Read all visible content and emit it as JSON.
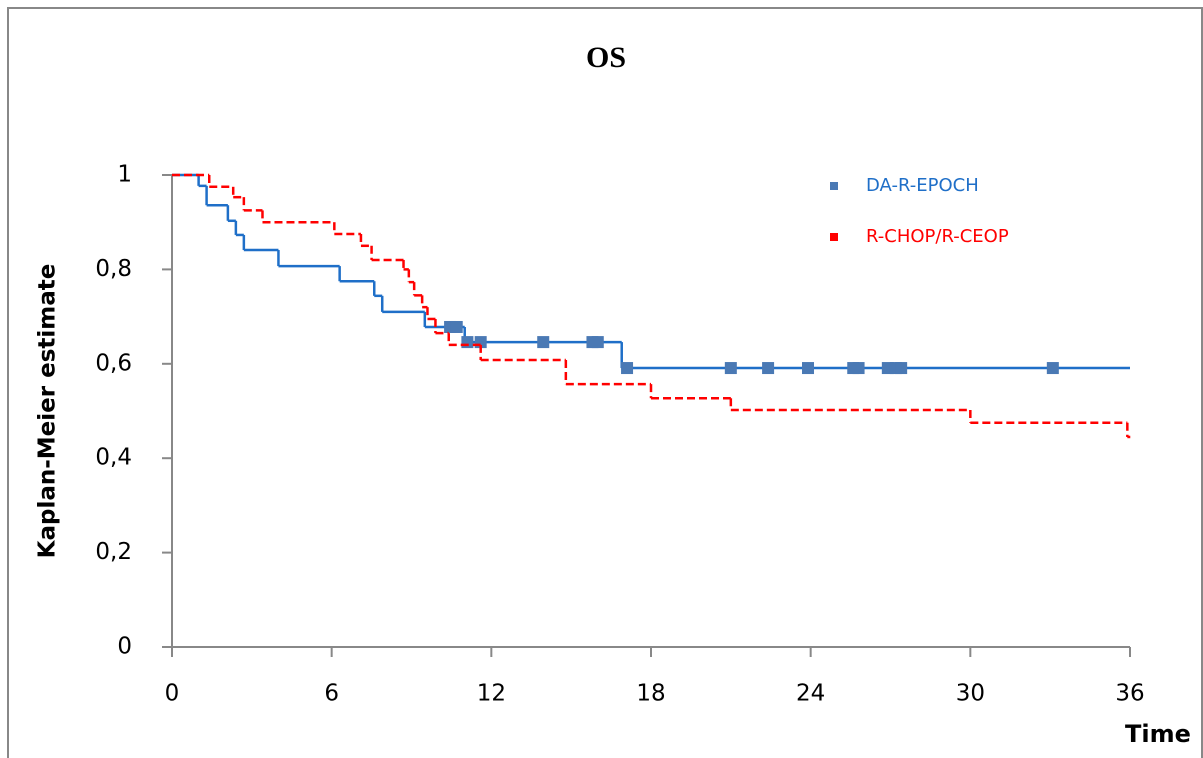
{
  "chart_data": {
    "type": "km-step",
    "title": "OS",
    "ylabel": "Kaplan-Meier estimate",
    "xlabel": "Time",
    "xlim": [
      0,
      36
    ],
    "xticks": [
      0,
      6,
      12,
      18,
      24,
      30,
      36
    ],
    "ylim": [
      0,
      1
    ],
    "yticks": [
      0,
      {
        "value": 0.2,
        "label": "0,2"
      },
      {
        "value": 0.4,
        "label": "0,4"
      },
      {
        "value": 0.6,
        "label": "0,6"
      },
      {
        "value": 0.8,
        "label": "0,8"
      },
      1
    ],
    "legend": "upper-right",
    "series": [
      {
        "name": "DA-R-EPOCH",
        "color": "#1f6fc8",
        "marker_color": "#4a79b4",
        "dashed": false,
        "x": [
          0,
          1.0,
          1.3,
          2.1,
          2.4,
          2.7,
          4.0,
          6.3,
          7.6,
          7.9,
          9.5,
          11.0,
          16.9,
          36
        ],
        "values": [
          1,
          0.977,
          0.936,
          0.903,
          0.873,
          0.841,
          0.807,
          0.775,
          0.744,
          0.71,
          0.678,
          0.646,
          0.591,
          0.591
        ],
        "censored": {
          "x": [
            10.45,
            10.7,
            11.1,
            11.6,
            13.95,
            15.8,
            16.0,
            17.1,
            21.0,
            22.4,
            23.9,
            25.6,
            25.8,
            26.9,
            27.2,
            27.4,
            33.1
          ],
          "values": [
            0.678,
            0.678,
            0.646,
            0.646,
            0.646,
            0.646,
            0.646,
            0.591,
            0.591,
            0.591,
            0.591,
            0.591,
            0.591,
            0.591,
            0.591,
            0.591,
            0.591
          ]
        }
      },
      {
        "name": "R-CHOP/R-CEOP",
        "color": "#ff0000",
        "marker_color": "#ff0000",
        "dashed": true,
        "x": [
          0,
          1.4,
          2.3,
          2.7,
          3.4,
          6.1,
          7.1,
          7.5,
          8.7,
          8.9,
          9.1,
          9.4,
          9.6,
          9.9,
          10.4,
          11.6,
          14.8,
          18.0,
          21.0,
          30.0,
          35.9,
          36
        ],
        "values": [
          1,
          0.975,
          0.953,
          0.925,
          0.9,
          0.875,
          0.85,
          0.82,
          0.8,
          0.773,
          0.745,
          0.72,
          0.695,
          0.665,
          0.64,
          0.608,
          0.557,
          0.527,
          0.502,
          0.475,
          0.445,
          0.445
        ]
      }
    ]
  }
}
